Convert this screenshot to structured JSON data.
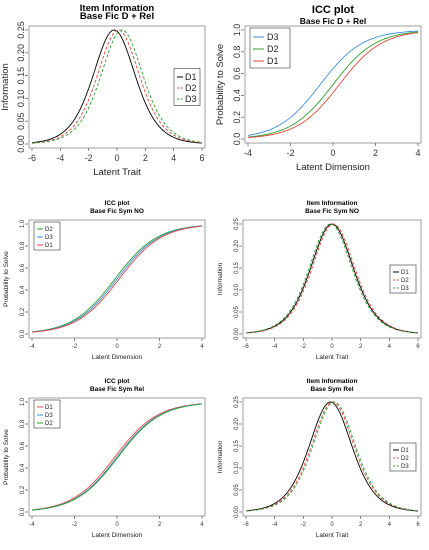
{
  "chart_data": [
    {
      "type": "line",
      "title": "Item Information",
      "subtitle": "Base Fic D + Rel",
      "xlabel": "Latent Trait",
      "ylabel": "Information",
      "xlim": [
        -6,
        6
      ],
      "ylim": [
        0,
        0.25
      ],
      "xticks": [
        "-6",
        "-4",
        "-2",
        "0",
        "2",
        "4",
        "6"
      ],
      "yticks": [
        "0.00",
        "0.05",
        "0.10",
        "0.15",
        "0.20",
        "0.25"
      ],
      "legend_position": "right",
      "series": [
        {
          "name": "D1",
          "color": "#000000",
          "dash": "solid",
          "curve": "information",
          "location": -0.2
        },
        {
          "name": "D2",
          "color": "#e8453c",
          "dash": "dashed",
          "curve": "information",
          "location": 0.1
        },
        {
          "name": "D3",
          "color": "#2ca02c",
          "dash": "dashed",
          "curve": "information",
          "location": 0.35
        }
      ]
    },
    {
      "type": "line",
      "title": "ICC plot",
      "subtitle": "Base Fic D + Rel",
      "xlabel": "Latent Dimension",
      "ylabel": "Probability to Solve",
      "xlim": [
        -4,
        4
      ],
      "ylim": [
        0,
        1
      ],
      "xticks": [
        "-4",
        "-2",
        "0",
        "2",
        "4"
      ],
      "yticks": [
        "0.0",
        "0.2",
        "0.4",
        "0.6",
        "0.8",
        "1.0"
      ],
      "legend_position": "top-left",
      "series": [
        {
          "name": "D3",
          "color": "#3b8ee0",
          "dash": "solid",
          "curve": "icc",
          "location": -0.6
        },
        {
          "name": "D2",
          "color": "#2ca02c",
          "dash": "solid",
          "curve": "icc",
          "location": 0.0
        },
        {
          "name": "D1",
          "color": "#e8453c",
          "dash": "solid",
          "curve": "icc",
          "location": 0.3
        }
      ]
    },
    {
      "type": "line",
      "title": "ICC plot",
      "subtitle": "Base Fic Sym NO",
      "xlabel": "Latent Dimension",
      "ylabel": "Probability to Solve",
      "xlim": [
        -4,
        4
      ],
      "ylim": [
        0,
        1
      ],
      "xticks": [
        "-4",
        "-2",
        "0",
        "2",
        "4"
      ],
      "yticks": [
        "0.0",
        "0.2",
        "0.4",
        "0.6",
        "0.8",
        "1.0"
      ],
      "legend_position": "top-left",
      "series": [
        {
          "name": "D2",
          "color": "#2ca02c",
          "dash": "solid",
          "curve": "icc",
          "location": -0.1
        },
        {
          "name": "D3",
          "color": "#3b8ee0",
          "dash": "solid",
          "curve": "icc",
          "location": 0.0
        },
        {
          "name": "D1",
          "color": "#e8453c",
          "dash": "solid",
          "curve": "icc",
          "location": 0.1
        }
      ]
    },
    {
      "type": "line",
      "title": "Item Information",
      "subtitle": "Base Fic Sym NO",
      "xlabel": "Latent Trait",
      "ylabel": "Information",
      "xlim": [
        -6,
        6
      ],
      "ylim": [
        0,
        0.25
      ],
      "xticks": [
        "-6",
        "-4",
        "-2",
        "0",
        "2",
        "4",
        "6"
      ],
      "yticks": [
        "0.00",
        "0.05",
        "0.10",
        "0.15",
        "0.20",
        "0.25"
      ],
      "legend_position": "right",
      "series": [
        {
          "name": "D1",
          "color": "#000000",
          "dash": "solid",
          "curve": "information",
          "location": 0.0
        },
        {
          "name": "D2",
          "color": "#e8453c",
          "dash": "dashed",
          "curve": "information",
          "location": 0.1
        },
        {
          "name": "D3",
          "color": "#2ca02c",
          "dash": "dashed",
          "curve": "information",
          "location": -0.1
        }
      ]
    },
    {
      "type": "line",
      "title": "ICC plot",
      "subtitle": "Base Fic Sym Rel",
      "xlabel": "Latent Dimension",
      "ylabel": "Probability to Solve",
      "xlim": [
        -4,
        4
      ],
      "ylim": [
        0,
        1
      ],
      "xticks": [
        "-4",
        "-2",
        "0",
        "2",
        "4"
      ],
      "yticks": [
        "0.0",
        "0.2",
        "0.4",
        "0.6",
        "0.8",
        "1.0"
      ],
      "legend_position": "top-left",
      "series": [
        {
          "name": "D1",
          "color": "#e8453c",
          "dash": "solid",
          "curve": "icc",
          "location": -0.1
        },
        {
          "name": "D3",
          "color": "#3b8ee0",
          "dash": "solid",
          "curve": "icc",
          "location": 0.0
        },
        {
          "name": "D2",
          "color": "#2ca02c",
          "dash": "solid",
          "curve": "icc",
          "location": 0.05
        }
      ]
    },
    {
      "type": "line",
      "title": "Item Information",
      "subtitle": "Base Sym Rel",
      "xlabel": "Latent Trait",
      "ylabel": "Information",
      "xlim": [
        -6,
        6
      ],
      "ylim": [
        0,
        0.25
      ],
      "xticks": [
        "-6",
        "-4",
        "-2",
        "0",
        "2",
        "4",
        "6"
      ],
      "yticks": [
        "0.00",
        "0.05",
        "0.10",
        "0.15",
        "0.20",
        "0.25"
      ],
      "legend_position": "right",
      "series": [
        {
          "name": "D1",
          "color": "#000000",
          "dash": "solid",
          "curve": "information",
          "location": -0.1
        },
        {
          "name": "D2",
          "color": "#e8453c",
          "dash": "dashed",
          "curve": "information",
          "location": 0.05
        },
        {
          "name": "D3",
          "color": "#2ca02c",
          "dash": "dashed",
          "curve": "information",
          "location": 0.15
        }
      ]
    }
  ]
}
